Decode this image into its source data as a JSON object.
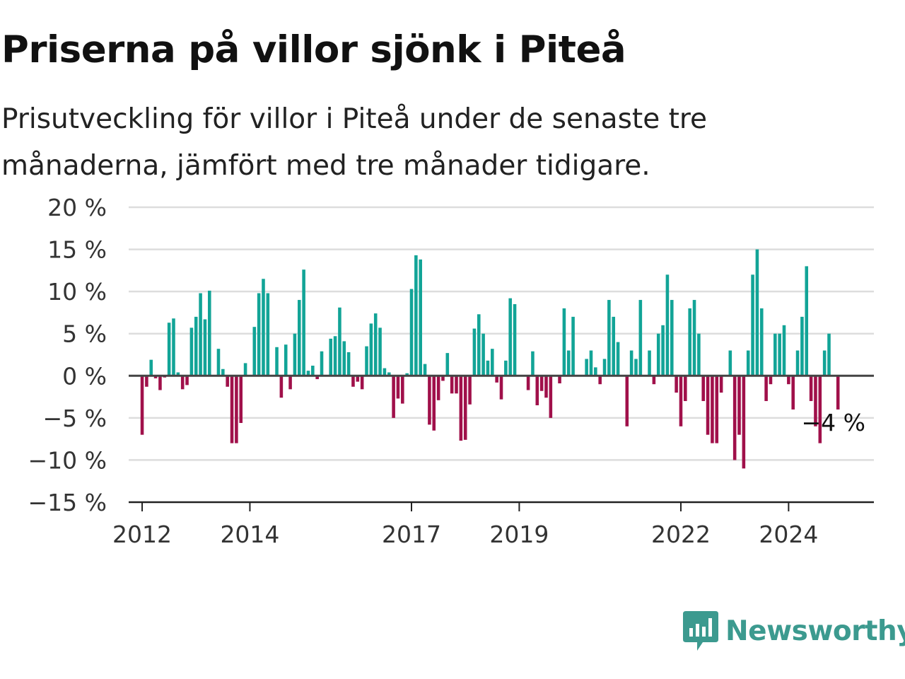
{
  "title": "Priserna på villor sjönk i Piteå",
  "subtitle": "Prisutveckling för villor i Piteå under de senaste tre månaderna, jämfört med tre månader tidigare.",
  "brand": {
    "name": "Newsworthy",
    "icon": "newsworthy-logo-icon",
    "color": "#3c9a8f"
  },
  "colors": {
    "positive": "#12a497",
    "negative": "#a0104a",
    "grid": "#dddddd",
    "zero_line": "#444444"
  },
  "chart_data": {
    "type": "bar",
    "title": "Priserna på villor sjönk i Piteå",
    "subtitle": "Prisutveckling för villor i Piteå under de senaste tre månaderna, jämfört med tre månader tidigare.",
    "x_start": "2011-10",
    "x_end": "2025-08",
    "ylim": [
      -15,
      20
    ],
    "y_ticks": [
      20,
      15,
      10,
      5,
      0,
      -5,
      -10,
      -15
    ],
    "y_tick_labels": [
      "20 %",
      "15 %",
      "10 %",
      "5 %",
      "0 %",
      "−5 %",
      "−10 %",
      "−15 %"
    ],
    "x_ticks": [
      {
        "date": "2012-01",
        "label": "2012"
      },
      {
        "date": "2014-01",
        "label": "2014"
      },
      {
        "date": "2017-01",
        "label": "2017"
      },
      {
        "date": "2019-01",
        "label": "2019"
      },
      {
        "date": "2022-01",
        "label": "2022"
      },
      {
        "date": "2024-01",
        "label": "2024"
      }
    ],
    "grid": true,
    "last_value_label": "−4 %",
    "series": [
      {
        "values": [
          [
            "2012-01",
            -7
          ],
          [
            "2012-02",
            -1.3
          ],
          [
            "2012-03",
            1.9
          ],
          [
            "2012-04",
            -0.3
          ],
          [
            "2012-05",
            -1.7
          ],
          [
            "2012-06",
            -0.2
          ],
          [
            "2012-07",
            6.3
          ],
          [
            "2012-08",
            6.8
          ],
          [
            "2012-09",
            0.4
          ],
          [
            "2012-10",
            -1.6
          ],
          [
            "2012-11",
            -1.1
          ],
          [
            "2012-12",
            5.7
          ],
          [
            "2013-01",
            7
          ],
          [
            "2013-02",
            9.8
          ],
          [
            "2013-03",
            6.7
          ],
          [
            "2013-04",
            10.1
          ],
          [
            "2013-05",
            0
          ],
          [
            "2013-06",
            3.2
          ],
          [
            "2013-07",
            0.8
          ],
          [
            "2013-08",
            -1.3
          ],
          [
            "2013-09",
            -8
          ],
          [
            "2013-10",
            -8
          ],
          [
            "2013-11",
            -5.6
          ],
          [
            "2013-12",
            1.5
          ],
          [
            "2014-01",
            0
          ],
          [
            "2014-02",
            5.8
          ],
          [
            "2014-03",
            9.8
          ],
          [
            "2014-04",
            11.5
          ],
          [
            "2014-05",
            9.8
          ],
          [
            "2014-06",
            0
          ],
          [
            "2014-07",
            3.4
          ],
          [
            "2014-08",
            -2.6
          ],
          [
            "2014-09",
            3.7
          ],
          [
            "2014-10",
            -1.6
          ],
          [
            "2014-11",
            5
          ],
          [
            "2014-12",
            9
          ],
          [
            "2015-01",
            12.6
          ],
          [
            "2015-02",
            0.6
          ],
          [
            "2015-03",
            1.2
          ],
          [
            "2015-04",
            -0.4
          ],
          [
            "2015-05",
            2.9
          ],
          [
            "2015-06",
            0
          ],
          [
            "2015-07",
            4.4
          ],
          [
            "2015-08",
            4.7
          ],
          [
            "2015-09",
            8.1
          ],
          [
            "2015-10",
            4.1
          ],
          [
            "2015-11",
            2.8
          ],
          [
            "2015-12",
            -1.3
          ],
          [
            "2016-01",
            -0.7
          ],
          [
            "2016-02",
            -1.6
          ],
          [
            "2016-03",
            3.5
          ],
          [
            "2016-04",
            6.2
          ],
          [
            "2016-05",
            7.4
          ],
          [
            "2016-06",
            5.7
          ],
          [
            "2016-07",
            0.9
          ],
          [
            "2016-08",
            0.4
          ],
          [
            "2016-09",
            -5
          ],
          [
            "2016-10",
            -2.7
          ],
          [
            "2016-11",
            -3.3
          ],
          [
            "2016-12",
            0.3
          ],
          [
            "2017-01",
            10.3
          ],
          [
            "2017-02",
            14.3
          ],
          [
            "2017-03",
            13.8
          ],
          [
            "2017-04",
            1.4
          ],
          [
            "2017-05",
            -5.8
          ],
          [
            "2017-06",
            -6.5
          ],
          [
            "2017-07",
            -2.9
          ],
          [
            "2017-08",
            -0.6
          ],
          [
            "2017-09",
            2.7
          ],
          [
            "2017-10",
            -2.1
          ],
          [
            "2017-11",
            -2.1
          ],
          [
            "2017-12",
            -7.7
          ],
          [
            "2018-01",
            -7.6
          ],
          [
            "2018-02",
            -3.4
          ],
          [
            "2018-03",
            5.6
          ],
          [
            "2018-04",
            7.3
          ],
          [
            "2018-05",
            5
          ],
          [
            "2018-06",
            1.8
          ],
          [
            "2018-07",
            3.2
          ],
          [
            "2018-08",
            -0.8
          ],
          [
            "2018-09",
            -2.8
          ],
          [
            "2018-10",
            1.8
          ],
          [
            "2018-11",
            9.2
          ],
          [
            "2018-12",
            8.5
          ],
          [
            "2019-01",
            0
          ],
          [
            "2019-02",
            0
          ],
          [
            "2019-03",
            -1.7
          ],
          [
            "2019-04",
            2.9
          ],
          [
            "2019-05",
            -3.5
          ],
          [
            "2019-06",
            -1.8
          ],
          [
            "2019-07",
            -2.6
          ],
          [
            "2019-08",
            -5
          ],
          [
            "2019-09",
            0
          ],
          [
            "2019-10",
            -0.9
          ],
          [
            "2019-11",
            8
          ],
          [
            "2019-12",
            3
          ],
          [
            "2020-01",
            7
          ],
          [
            "2020-02",
            0
          ],
          [
            "2020-03",
            0
          ],
          [
            "2020-04",
            2
          ],
          [
            "2020-05",
            3
          ],
          [
            "2020-06",
            1
          ],
          [
            "2020-07",
            -1
          ],
          [
            "2020-08",
            2
          ],
          [
            "2020-09",
            9
          ],
          [
            "2020-10",
            7
          ],
          [
            "2020-11",
            4
          ],
          [
            "2020-12",
            0
          ],
          [
            "2021-01",
            -6
          ],
          [
            "2021-02",
            3
          ],
          [
            "2021-03",
            2
          ],
          [
            "2021-04",
            9
          ],
          [
            "2021-05",
            0
          ],
          [
            "2021-06",
            3
          ],
          [
            "2021-07",
            -1
          ],
          [
            "2021-08",
            5
          ],
          [
            "2021-09",
            6
          ],
          [
            "2021-10",
            12
          ],
          [
            "2021-11",
            9
          ],
          [
            "2021-12",
            -2
          ],
          [
            "2022-01",
            -6
          ],
          [
            "2022-02",
            -3
          ],
          [
            "2022-03",
            8
          ],
          [
            "2022-04",
            9
          ],
          [
            "2022-05",
            5
          ],
          [
            "2022-06",
            -3
          ],
          [
            "2022-07",
            -7
          ],
          [
            "2022-08",
            -8
          ],
          [
            "2022-09",
            -8
          ],
          [
            "2022-10",
            -2
          ],
          [
            "2022-11",
            0
          ],
          [
            "2022-12",
            3
          ],
          [
            "2023-01",
            -10
          ],
          [
            "2023-02",
            -7
          ],
          [
            "2023-03",
            -11
          ],
          [
            "2023-04",
            3
          ],
          [
            "2023-05",
            12
          ],
          [
            "2023-06",
            15
          ],
          [
            "2023-07",
            8
          ],
          [
            "2023-08",
            -3
          ],
          [
            "2023-09",
            -1
          ],
          [
            "2023-10",
            5
          ],
          [
            "2023-11",
            5
          ],
          [
            "2023-12",
            6
          ],
          [
            "2024-01",
            -1
          ],
          [
            "2024-02",
            -4
          ],
          [
            "2024-03",
            3
          ],
          [
            "2024-04",
            7
          ],
          [
            "2024-05",
            13
          ],
          [
            "2024-06",
            -3
          ],
          [
            "2024-07",
            -6
          ],
          [
            "2024-08",
            -8
          ],
          [
            "2024-09",
            3
          ],
          [
            "2024-10",
            5
          ],
          [
            "2024-11",
            0
          ],
          [
            "2024-12",
            -4
          ]
        ]
      }
    ]
  }
}
